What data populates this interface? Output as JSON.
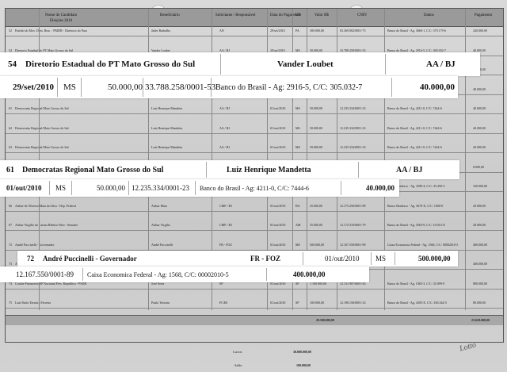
{
  "header": {
    "candidate_col": "Nome do Candidato",
    "election": "Eleições 2010",
    "beneficiary_col": "Beneficiário",
    "requester_col": "Solicitante / Responsável",
    "date_col": "Data do Pagamento",
    "uf_col": "UF",
    "value_col": "Valor R$",
    "cnpj_col": "CNPJ",
    "bank_col": "Dados",
    "payment_col": "Pagamento"
  },
  "rows": [
    {
      "n": "52",
      "name": "Partido do Mov. Dem. Bras. - PMDB - Diretorio do Para",
      "ben": "Jader Barbalho",
      "req": "AN",
      "date": "29/set/2010",
      "uf": "PA",
      "val": "300.000,00",
      "cnpj": "03.369.082/0001-75",
      "bank": "Banco do Brasil - Ag. 3666-1, C/C: 379.179-6",
      "pay": "240.000,00"
    },
    {
      "n": "54",
      "name": "Diretorio Estadual do PT Mato Grosso do Sul",
      "ben": "Vander Loubet",
      "req": "AA / BJ",
      "date": "29/set/2010",
      "uf": "MS",
      "val": "50.000,00",
      "cnpj": "33.788.258/0001-53",
      "bank": "Banco do Brasil - Ag. 2916-5, C/C: 305.032-7",
      "pay": "40.000,00"
    },
    {
      "n": "55",
      "name": "Jutahy Magalhaes Junior - Deputado Federal",
      "ben": "Jutahy Junior",
      "req": "CMF / BJ",
      "date": "29/set/2010",
      "uf": "BA",
      "val": "30.000,00",
      "cnpj": "12.177.559/0001-84",
      "bank": "Banco do Brasil - Ag. 3474-0, C/C: 17.757-7",
      "pay": "24.000,00"
    },
    {
      "n": "60",
      "name": "Antero Paes de Barros Neto - Senador",
      "ben": "Antero Paes",
      "req": "CMF / BJ",
      "date": "29/set/2010",
      "uf": "MT",
      "val": "60.000,00",
      "cnpj": "12.199.044/0001-23",
      "bank": "Banco do Brasil - Ag. 3325-3, C/C: 11.036-9",
      "pay": "48.000,00"
    },
    {
      "n": "61",
      "name": "Democratas Regional Mato Grosso do Sul",
      "ben": "Luiz Henrique Mandetta",
      "req": "AA / BJ",
      "date": "01/out/2010",
      "uf": "MS",
      "val": "50.000,00",
      "cnpj": "12.235.334/0001-23",
      "bank": "Banco do Brasil - Ag. 4211-0, C/C: 7444-6",
      "pay": "40.000,00"
    },
    {
      "n": "62",
      "name": "Democratas Regional Mato Grosso do Sul",
      "ben": "Luiz Henrique Mandetta",
      "req": "AA / BJ",
      "date": "01/out/2010",
      "uf": "MS",
      "val": "50.000,00",
      "cnpj": "12.235.334/0001-23",
      "bank": "Banco do Brasil - Ag. 4211-0, C/C: 7444-6",
      "pay": "40.000,00"
    },
    {
      "n": "63",
      "name": "Democratas Regional Mato Grosso do Sul",
      "ben": "Luiz Henrique Mandetta",
      "req": "AA / BJ",
      "date": "01/out/2010",
      "uf": "MS",
      "val": "50.000,00",
      "cnpj": "12.235.334/0001-23",
      "bank": "Banco do Brasil - Ag. 4211-0, C/C: 7444-6",
      "pay": "40.000,00"
    },
    {
      "n": "64",
      "name": "PSB Comite Eleitoral Partidario 2010",
      "ben": "Gabriel Chalita/Manoel Wilson Martins Paixao",
      "req": "AA / BJ",
      "date": "01/out/2010",
      "uf": "SP",
      "val": "10.000,00",
      "cnpj": "56.275.456/0001-55",
      "bank": "Caixa Economica Federal - Ag. 0241, C/C: 717-1",
      "pay": "8.000,00"
    },
    {
      "n": "65",
      "name": "Democratas - Diretorio Estadual BA",
      "ben": "Paulo Souto",
      "req": "AN",
      "date": "01/out/2010",
      "uf": "BA",
      "val": "200.000,00",
      "cnpj": "13.056.905/0001-87",
      "bank": "Banco Bradesco - Ag. 3589-4, C/C: 35.450-3",
      "pay": "160.000,00"
    },
    {
      "n": "66",
      "name": "Arthur de Oliveira Maia da Silva - Dep. Federal",
      "ben": "Arthur Maia",
      "req": "CMF / BJ",
      "date": "01/out/2010",
      "uf": "BA",
      "val": "25.000,00",
      "cnpj": "12.175.256/0001-89",
      "bank": "Banco Bradesco - Ag. 3670-X, C/C: 1000-0",
      "pay": "20.000,00"
    },
    {
      "n": "67",
      "name": "Arthur Virgilio do Carmo Ribeiro Neto - Senador",
      "ben": "Arthur Virgilio",
      "req": "CMF / BJ",
      "date": "01/out/2010",
      "uf": "AM",
      "val": "35.000,00",
      "cnpj": "12.172.310/0001-79",
      "bank": "Banco do Brasil - Ag. 3563-9, C/C: 10.014-X",
      "pay": "28.000,00"
    },
    {
      "n": "72",
      "name": "André Puccinelli - Governador",
      "ben": "André Puccinelli",
      "req": "FR - FOZ",
      "date": "01/out/2010",
      "uf": "MS",
      "val": "500.000,00",
      "cnpj": "12.167.550/0001-89",
      "bank": "Caixa Economica Federal - Ag. 1568, C/C: 00002010-5",
      "pay": "400.000,00"
    },
    {
      "n": "73",
      "name": "André Puccinelli - Governador",
      "ben": "André Puccinelli",
      "req": "FR - FOZ",
      "date": "01/out/2010",
      "uf": "MS",
      "val": "500.000,00",
      "cnpj": "12.167.550/0001-89",
      "bank": "Caixa Economica Federal - Ag. 1568, C/C: 00002010-5",
      "pay": "400.000,00"
    },
    {
      "n": "74",
      "name": "Comite Financeiro SP Nacional Pres. Republica - PSDB",
      "ben": "José Serra",
      "req": "SP",
      "date": "01/out/2010",
      "uf": "SP",
      "val": "1.100.000,00",
      "cnpj": "12.131.907/0001-43",
      "bank": "Banco do Brasil - Ag. 1065-3, C/C: 35.099-9",
      "pay": "880.000,00"
    },
    {
      "n": "75",
      "name": "Luiz Paulo Teixeira Ferreira",
      "ben": "Paulo Teixeira",
      "req": "FC/BJ",
      "date": "01/out/2010",
      "uf": "SP",
      "val": "100.000,00",
      "cnpj": "12.198.156/0001-23",
      "bank": "Banco do Brasil - Ag. 4305-X, C/C: 106.344-5",
      "pay": "80.000,00"
    }
  ],
  "totals": {
    "value_total": "29.500.000,00",
    "payment_total": "23.620.000,00"
  },
  "footer": {
    "label1": "Lucros:",
    "value1": "30.000.000,00",
    "label2": "Saldo:",
    "value2": "100.000,00"
  },
  "callouts": [
    {
      "line1": {
        "n": "54",
        "name": "Diretorio Estadual do PT Mato Grosso do Sul",
        "ben": "Vander Loubet",
        "req": "AA / BJ"
      },
      "line2": {
        "date": "29/set/2010",
        "uf": "MS",
        "val": "50.000,00",
        "cnpj": "33.788.258/0001-53",
        "bank": "Banco do Brasil - Ag: 2916-5, C/C: 305.032-7",
        "pay": "40.000,00"
      }
    },
    {
      "line1": {
        "n": "61",
        "name": "Democratas Regional Mato Grosso do Sul",
        "ben": "Luiz Henrique Mandetta",
        "req": "AA / BJ"
      },
      "line2": {
        "date": "01/out/2010",
        "uf": "MS",
        "val": "50.000,00",
        "cnpj": "12.235.334/0001-23",
        "bank": "Banco do Brasil - Ag: 4211-0, C/C: 7444-6",
        "pay": "40.000,00"
      }
    },
    {
      "line1": {
        "n": "72",
        "name": "André Puccinelli - Governador",
        "req": "FR - FOZ",
        "date": "01/out/2010",
        "uf": "MS",
        "val": "500.000,00"
      },
      "line2": {
        "cnpj": "12.167.550/0001-89",
        "bank": "Caixa Economica Federal - Ag: 1568, C/C: 00002010-5",
        "pay": "400.000,00"
      }
    }
  ],
  "signature": "Lotto"
}
